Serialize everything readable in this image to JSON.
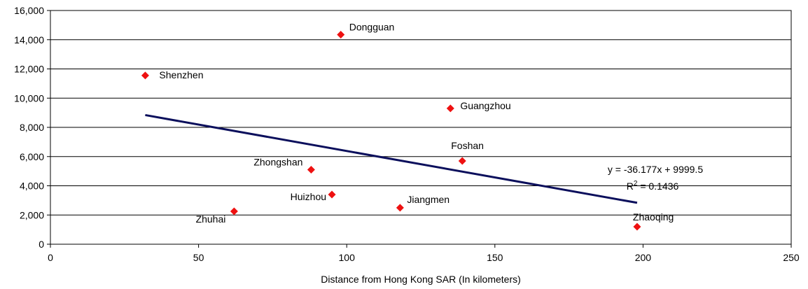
{
  "chart_data": {
    "type": "scatter",
    "xlabel": "Distance from Hong Kong SAR (In kilometers)",
    "ylabel": "",
    "xlim": [
      0,
      250
    ],
    "ylim": [
      0,
      16000
    ],
    "xticks": [
      0,
      50,
      100,
      150,
      200,
      250
    ],
    "yticks": [
      0,
      2000,
      4000,
      6000,
      8000,
      10000,
      12000,
      14000,
      16000
    ],
    "xtick_labels": [
      "0",
      "50",
      "100",
      "150",
      "200",
      "250"
    ],
    "ytick_labels": [
      "0",
      "2,000",
      "4,000",
      "6,000",
      "8,000",
      "10,000",
      "12,000",
      "14,000",
      "16,000"
    ],
    "grid": "horizontal",
    "marker_color": "#ee1111",
    "trend_color": "#0b0f5c",
    "points": [
      {
        "label": "Shenzhen",
        "x": 32,
        "y": 11550
      },
      {
        "label": "Dongguan",
        "x": 98,
        "y": 14350
      },
      {
        "label": "Guangzhou",
        "x": 135,
        "y": 9300
      },
      {
        "label": "Foshan",
        "x": 139,
        "y": 5700
      },
      {
        "label": "Zhongshan",
        "x": 88,
        "y": 5100
      },
      {
        "label": "Huizhou",
        "x": 95,
        "y": 3400
      },
      {
        "label": "Jiangmen",
        "x": 118,
        "y": 2500
      },
      {
        "label": "Zhuhai",
        "x": 62,
        "y": 2250
      },
      {
        "label": "Zhaoqing",
        "x": 198,
        "y": 1200
      }
    ],
    "trendline": {
      "x": [
        32,
        198
      ],
      "equation": "y = -36.177x + 9999.5",
      "r2_prefix": "R",
      "r2_sup": "2",
      "r2_suffix": " = 0.1436"
    }
  }
}
